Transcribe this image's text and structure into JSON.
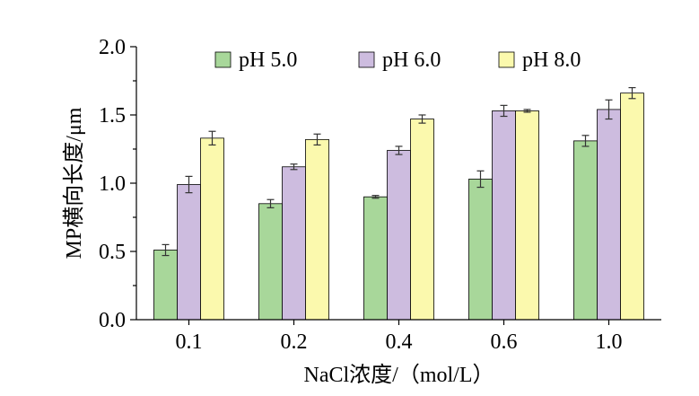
{
  "chart_data": {
    "type": "bar",
    "categories": [
      "0.1",
      "0.2",
      "0.4",
      "0.6",
      "1.0"
    ],
    "series": [
      {
        "name": "pH 5.0",
        "color": "#a8d79a",
        "values": [
          0.51,
          0.85,
          0.9,
          1.03,
          1.31
        ],
        "errors": [
          0.04,
          0.03,
          0.01,
          0.06,
          0.04
        ]
      },
      {
        "name": "pH 6.0",
        "color": "#cdbcdf",
        "values": [
          0.99,
          1.12,
          1.24,
          1.53,
          1.54
        ],
        "errors": [
          0.06,
          0.02,
          0.03,
          0.04,
          0.07
        ]
      },
      {
        "name": "pH 8.0",
        "color": "#fbf9ad",
        "values": [
          1.33,
          1.32,
          1.47,
          1.53,
          1.66
        ],
        "errors": [
          0.05,
          0.04,
          0.03,
          0.01,
          0.04
        ]
      }
    ],
    "xlabel": "NaCl浓度/（mol/L）",
    "ylabel": "MP横向长度/μm",
    "ylim": [
      0,
      2.0
    ],
    "yticks": [
      "0.0",
      "0.5",
      "1.0",
      "1.5",
      "2.0"
    ],
    "legend": "top",
    "grid": false
  }
}
